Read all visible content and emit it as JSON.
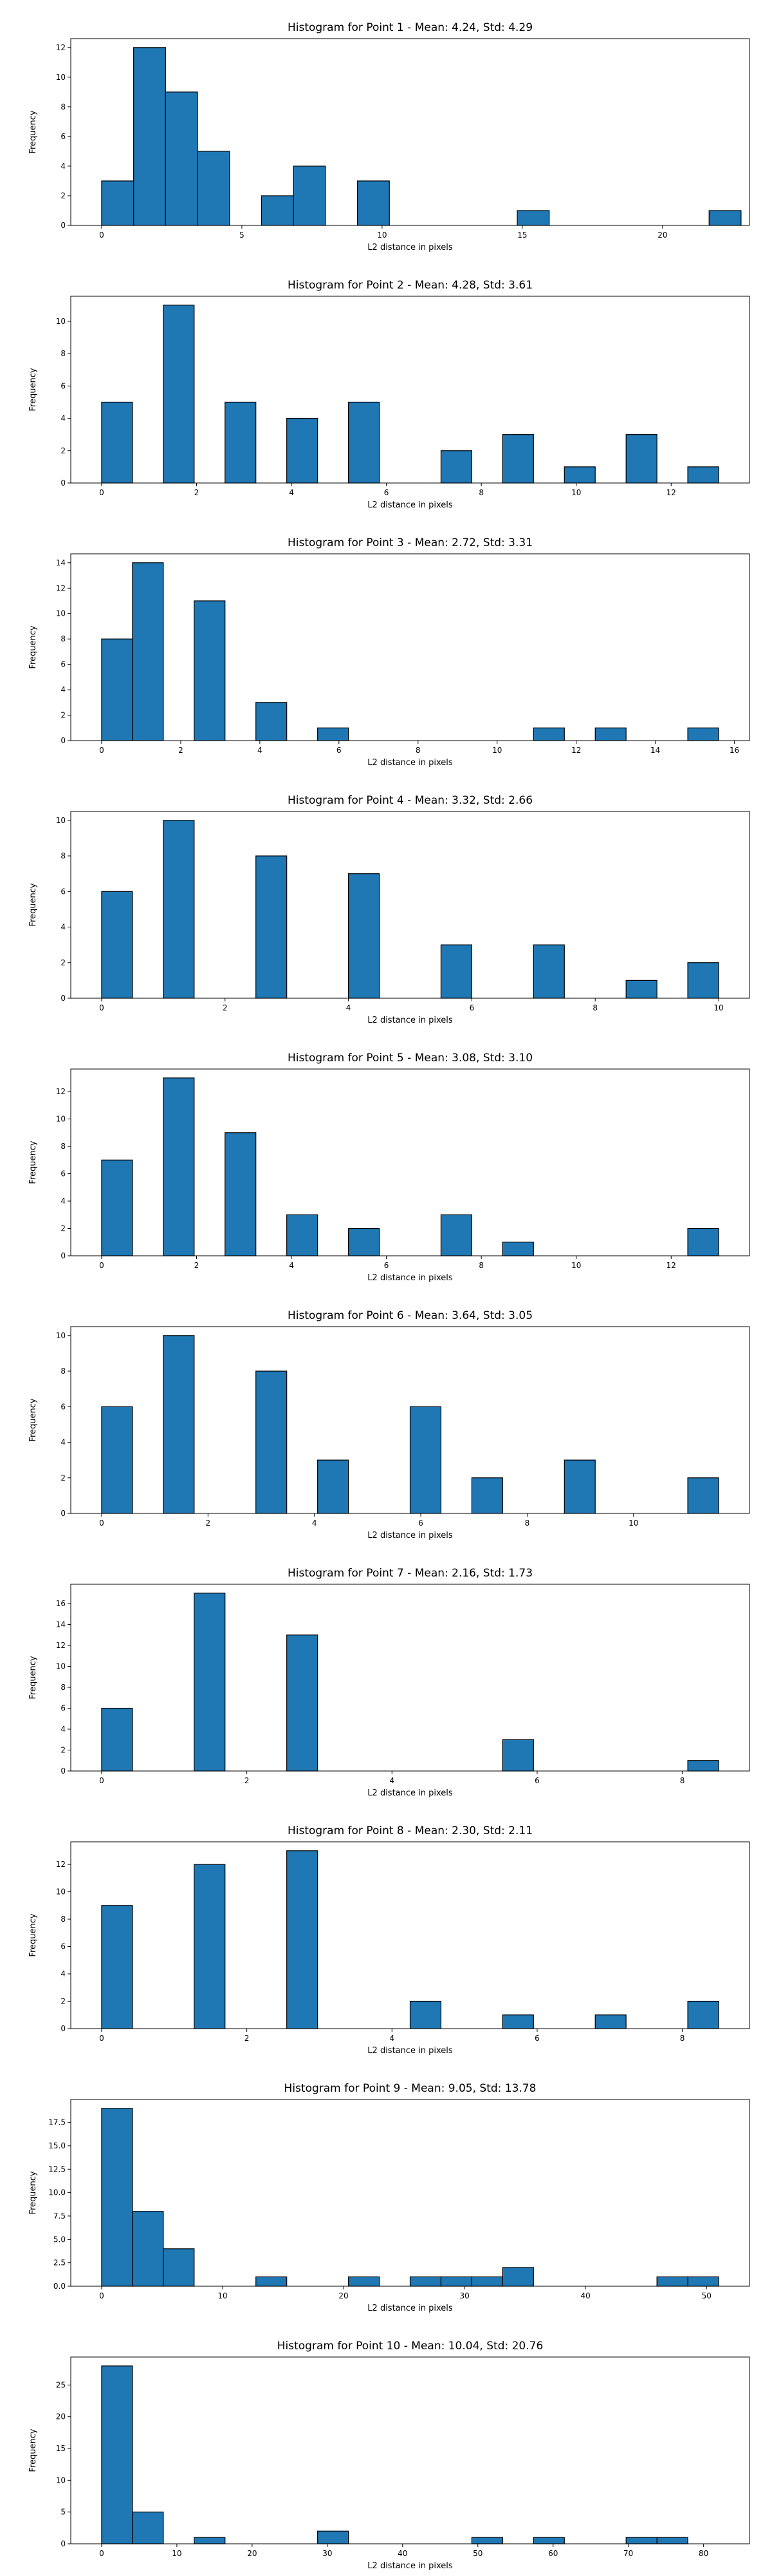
{
  "chart_data": [
    {
      "type": "bar",
      "title": "Histogram for Point 1 - Mean: 4.24, Std: 4.29",
      "xlabel": "L2 distance in pixels",
      "ylabel": "Frequency",
      "xlim": [
        -1.1,
        23.1
      ],
      "ylim": [
        0,
        12.6
      ],
      "xticks": [
        0,
        5,
        10,
        15,
        20
      ],
      "yticks": [
        0,
        2,
        4,
        6,
        8,
        10,
        12
      ],
      "bin_edges": [
        0,
        1.14,
        2.28,
        3.42,
        4.56,
        5.7,
        6.84,
        7.98,
        9.12,
        10.26,
        11.4,
        12.54,
        13.68,
        14.82,
        15.96,
        17.1,
        18.24,
        19.38,
        20.52,
        21.66,
        22.8
      ],
      "values": [
        3,
        12,
        9,
        5,
        0,
        2,
        4,
        0,
        3,
        0,
        0,
        0,
        0,
        1,
        0,
        0,
        0,
        0,
        0,
        1
      ],
      "grid": false
    },
    {
      "type": "bar",
      "title": "Histogram for Point 2 - Mean: 4.28, Std: 3.61",
      "xlabel": "L2 distance in pixels",
      "ylabel": "Frequency",
      "xlim": [
        -0.65,
        13.65
      ],
      "ylim": [
        0,
        11.55
      ],
      "xticks": [
        0,
        2,
        4,
        6,
        8,
        10,
        12
      ],
      "yticks": [
        0,
        2,
        4,
        6,
        8,
        10
      ],
      "bin_edges": [
        0,
        0.65,
        1.3,
        1.95,
        2.6,
        3.25,
        3.9,
        4.55,
        5.2,
        5.85,
        6.5,
        7.15,
        7.8,
        8.45,
        9.1,
        9.75,
        10.4,
        11.05,
        11.7,
        12.35,
        13.0
      ],
      "values": [
        5,
        0,
        11,
        0,
        5,
        0,
        4,
        0,
        5,
        0,
        0,
        2,
        0,
        3,
        0,
        1,
        0,
        3,
        0,
        1
      ],
      "grid": false
    },
    {
      "type": "bar",
      "title": "Histogram for Point 3 - Mean: 2.72, Std: 3.31",
      "xlabel": "L2 distance in pixels",
      "ylabel": "Frequency",
      "xlim": [
        -0.78,
        16.38
      ],
      "ylim": [
        0,
        14.7
      ],
      "xticks": [
        0,
        2,
        4,
        6,
        8,
        10,
        12,
        14,
        16
      ],
      "yticks": [
        0,
        2,
        4,
        6,
        8,
        10,
        12,
        14
      ],
      "bin_edges": [
        0,
        0.78,
        1.56,
        2.34,
        3.12,
        3.9,
        4.68,
        5.46,
        6.24,
        7.02,
        7.8,
        8.58,
        9.36,
        10.14,
        10.92,
        11.7,
        12.48,
        13.26,
        14.04,
        14.82,
        15.6
      ],
      "values": [
        8,
        14,
        0,
        11,
        0,
        3,
        0,
        1,
        0,
        0,
        0,
        0,
        0,
        0,
        1,
        0,
        1,
        0,
        0,
        1
      ],
      "grid": false
    },
    {
      "type": "bar",
      "title": "Histogram for Point 4 - Mean: 3.32, Std: 2.66",
      "xlabel": "L2 distance in pixels",
      "ylabel": "Frequency",
      "xlim": [
        -0.5,
        10.5
      ],
      "ylim": [
        0,
        10.5
      ],
      "xticks": [
        0,
        2,
        4,
        6,
        8,
        10
      ],
      "yticks": [
        0,
        2,
        4,
        6,
        8,
        10
      ],
      "bin_edges": [
        0,
        0.5,
        1,
        1.5,
        2,
        2.5,
        3,
        3.5,
        4,
        4.5,
        5,
        5.5,
        6,
        6.5,
        7,
        7.5,
        8,
        8.5,
        9,
        9.5,
        10
      ],
      "values": [
        6,
        0,
        10,
        0,
        0,
        8,
        0,
        0,
        7,
        0,
        0,
        3,
        0,
        0,
        3,
        0,
        0,
        1,
        0,
        2
      ],
      "grid": false
    },
    {
      "type": "bar",
      "title": "Histogram for Point 5 - Mean: 3.08, Std: 3.10",
      "xlabel": "L2 distance in pixels",
      "ylabel": "Frequency",
      "xlim": [
        -0.65,
        13.65
      ],
      "ylim": [
        0,
        13.65
      ],
      "xticks": [
        0,
        2,
        4,
        6,
        8,
        10,
        12
      ],
      "yticks": [
        0,
        2,
        4,
        6,
        8,
        10,
        12
      ],
      "bin_edges": [
        0,
        0.65,
        1.3,
        1.95,
        2.6,
        3.25,
        3.9,
        4.55,
        5.2,
        5.85,
        6.5,
        7.15,
        7.8,
        8.45,
        9.1,
        9.75,
        10.4,
        11.05,
        11.7,
        12.35,
        13.0
      ],
      "values": [
        7,
        0,
        13,
        0,
        9,
        0,
        3,
        0,
        2,
        0,
        0,
        3,
        0,
        1,
        0,
        0,
        0,
        0,
        0,
        2
      ],
      "grid": false
    },
    {
      "type": "bar",
      "title": "Histogram for Point 6 - Mean: 3.64, Std: 3.05",
      "xlabel": "L2 distance in pixels",
      "ylabel": "Frequency",
      "xlim": [
        -0.58,
        12.18
      ],
      "ylim": [
        0,
        10.5
      ],
      "xticks": [
        0,
        2,
        4,
        6,
        8,
        10
      ],
      "yticks": [
        0,
        2,
        4,
        6,
        8,
        10
      ],
      "bin_edges": [
        0,
        0.58,
        1.16,
        1.74,
        2.32,
        2.9,
        3.48,
        4.06,
        4.64,
        5.22,
        5.8,
        6.38,
        6.96,
        7.54,
        8.12,
        8.7,
        9.28,
        9.86,
        10.44,
        11.02,
        11.6
      ],
      "values": [
        6,
        0,
        10,
        0,
        0,
        8,
        0,
        3,
        0,
        0,
        6,
        0,
        2,
        0,
        0,
        3,
        0,
        0,
        0,
        2
      ],
      "grid": false
    },
    {
      "type": "bar",
      "title": "Histogram for Point 7 - Mean: 2.16, Std: 1.73",
      "xlabel": "L2 distance in pixels",
      "ylabel": "Frequency",
      "xlim": [
        -0.425,
        8.925
      ],
      "ylim": [
        0,
        17.85
      ],
      "xticks": [
        0,
        2,
        4,
        6,
        8
      ],
      "yticks": [
        0,
        2,
        4,
        6,
        8,
        10,
        12,
        14,
        16
      ],
      "bin_edges": [
        0,
        0.425,
        0.85,
        1.275,
        1.7,
        2.125,
        2.55,
        2.975,
        3.4,
        3.825,
        4.25,
        4.675,
        5.1,
        5.525,
        5.95,
        6.375,
        6.8,
        7.225,
        7.65,
        8.075,
        8.5
      ],
      "values": [
        6,
        0,
        0,
        17,
        0,
        0,
        13,
        0,
        0,
        0,
        0,
        0,
        0,
        3,
        0,
        0,
        0,
        0,
        0,
        1
      ],
      "grid": false
    },
    {
      "type": "bar",
      "title": "Histogram for Point 8 - Mean: 2.30, Std: 2.11",
      "xlabel": "L2 distance in pixels",
      "ylabel": "Frequency",
      "xlim": [
        -0.425,
        8.925
      ],
      "ylim": [
        0,
        13.65
      ],
      "xticks": [
        0,
        2,
        4,
        6,
        8
      ],
      "yticks": [
        0,
        2,
        4,
        6,
        8,
        10,
        12
      ],
      "bin_edges": [
        0,
        0.425,
        0.85,
        1.275,
        1.7,
        2.125,
        2.55,
        2.975,
        3.4,
        3.825,
        4.25,
        4.675,
        5.1,
        5.525,
        5.95,
        6.375,
        6.8,
        7.225,
        7.65,
        8.075,
        8.5
      ],
      "values": [
        9,
        0,
        0,
        12,
        0,
        0,
        13,
        0,
        0,
        0,
        2,
        0,
        0,
        1,
        0,
        0,
        1,
        0,
        0,
        2
      ],
      "grid": false
    },
    {
      "type": "bar",
      "title": "Histogram for Point 9 - Mean: 9.05, Std: 13.78",
      "xlabel": "L2 distance in pixels",
      "ylabel": "Frequency",
      "xlim": [
        -2.55,
        53.55
      ],
      "ylim": [
        0,
        19.95
      ],
      "xticks": [
        0,
        10,
        20,
        30,
        40,
        50
      ],
      "yticks": [
        0.0,
        2.5,
        5.0,
        7.5,
        10.0,
        12.5,
        15.0,
        17.5
      ],
      "bin_edges": [
        0,
        2.55,
        5.1,
        7.65,
        10.2,
        12.75,
        15.3,
        17.85,
        20.4,
        22.95,
        25.5,
        28.05,
        30.6,
        33.15,
        35.7,
        38.25,
        40.8,
        43.35,
        45.9,
        48.45,
        51.0
      ],
      "values": [
        19,
        8,
        4,
        0,
        0,
        1,
        0,
        0,
        1,
        0,
        1,
        1,
        1,
        2,
        0,
        0,
        0,
        0,
        1,
        1
      ],
      "grid": false
    },
    {
      "type": "bar",
      "title": "Histogram for Point 10 - Mean: 10.04, Std: 20.76",
      "xlabel": "L2 distance in pixels",
      "ylabel": "Frequency",
      "xlim": [
        -4.1,
        86.1
      ],
      "ylim": [
        0,
        29.4
      ],
      "xticks": [
        0,
        10,
        20,
        30,
        40,
        50,
        60,
        70,
        80
      ],
      "yticks": [
        0,
        5,
        10,
        15,
        20,
        25
      ],
      "bin_edges": [
        0,
        4.1,
        8.2,
        12.3,
        16.4,
        20.5,
        24.6,
        28.7,
        32.8,
        36.9,
        41.0,
        45.1,
        49.2,
        53.3,
        57.4,
        61.5,
        65.6,
        69.7,
        73.8,
        77.9,
        82.0
      ],
      "values": [
        28,
        5,
        0,
        1,
        0,
        0,
        0,
        2,
        0,
        0,
        0,
        0,
        1,
        0,
        1,
        0,
        0,
        1,
        1,
        0
      ],
      "grid": false
    }
  ]
}
